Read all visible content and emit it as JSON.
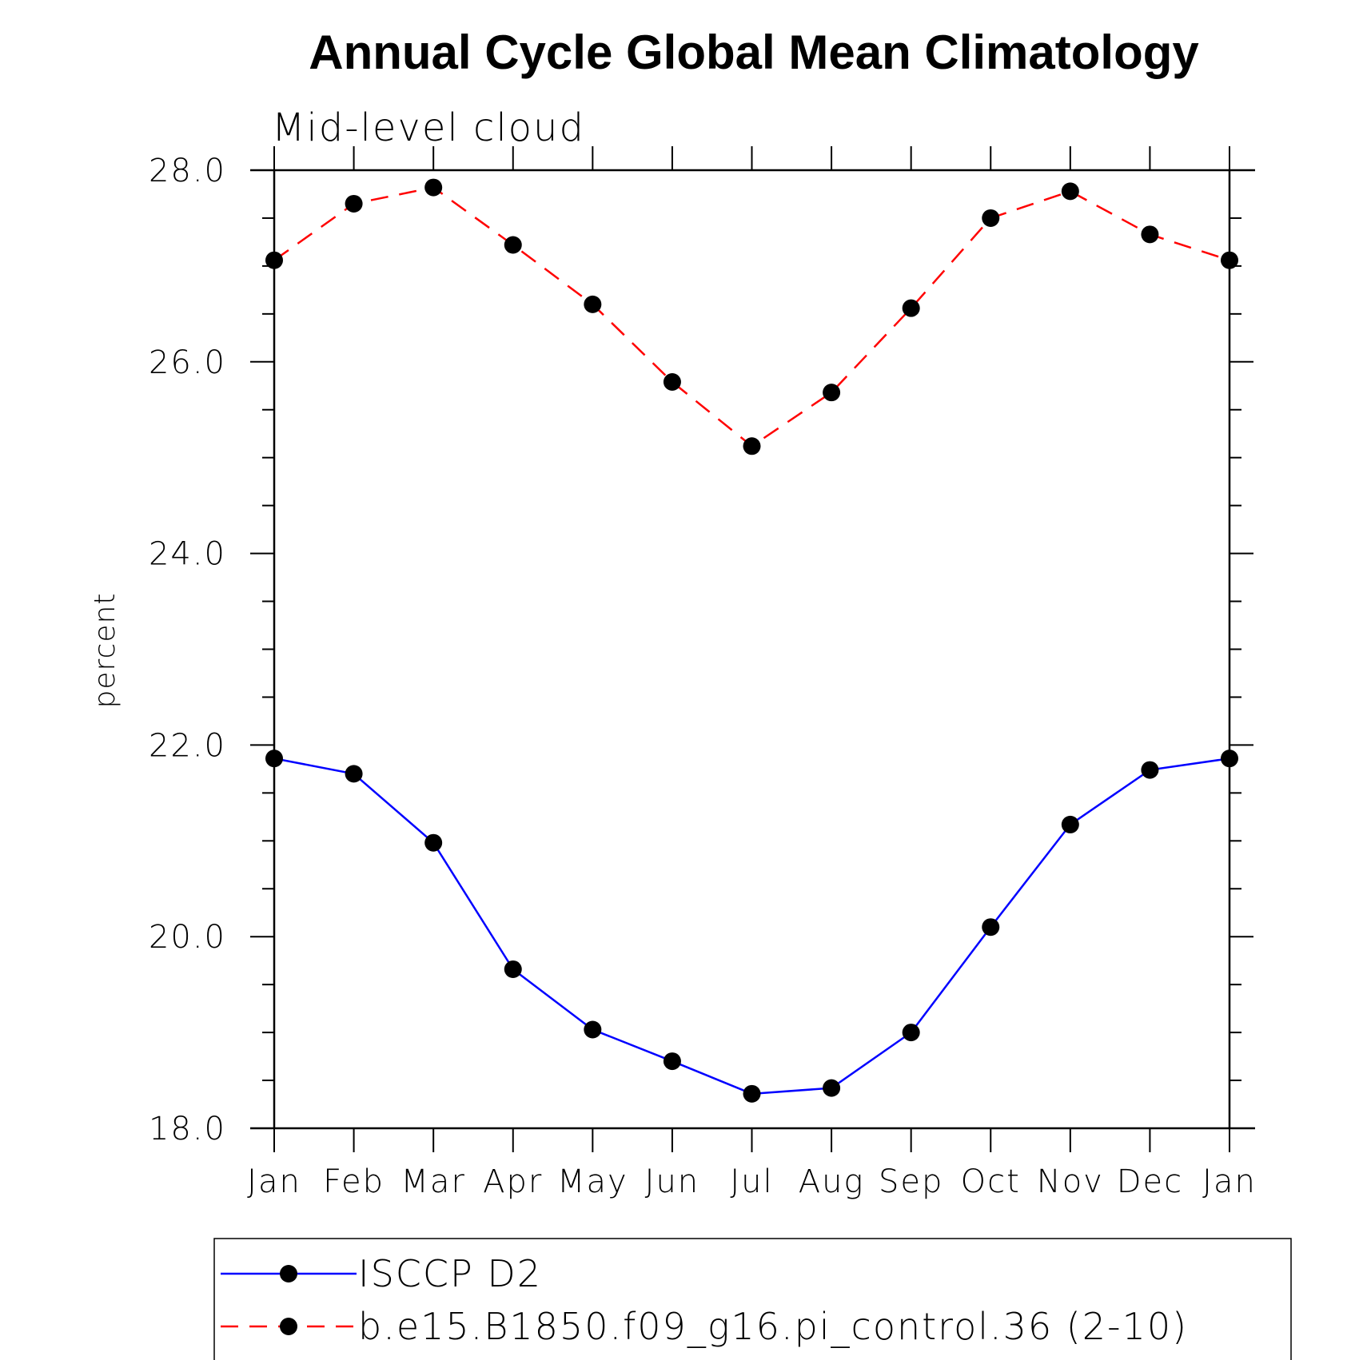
{
  "chart_data": {
    "type": "line",
    "title": "Annual Cycle Global Mean Climatology",
    "subtitle": "Mid-level cloud",
    "xlabel": "",
    "ylabel": "percent",
    "ylim": [
      18.0,
      28.0
    ],
    "y_ticks": [
      "18.0",
      "20.0",
      "22.0",
      "24.0",
      "26.0",
      "28.0"
    ],
    "categories": [
      "Jan",
      "Feb",
      "Mar",
      "Apr",
      "May",
      "Jun",
      "Jul",
      "Aug",
      "Sep",
      "Oct",
      "Nov",
      "Dec",
      "Jan"
    ],
    "series": [
      {
        "name": "ISCCP D2",
        "color": "#0000ff",
        "dash": "solid",
        "values": [
          21.86,
          21.7,
          20.98,
          19.66,
          19.03,
          18.7,
          18.36,
          18.42,
          19.0,
          20.1,
          21.17,
          21.74,
          21.86
        ]
      },
      {
        "name": "b.e15.B1850.f09_g16.pi_control.36 (2-10)",
        "color": "#ff0000",
        "dash": "dashed",
        "values": [
          27.06,
          27.65,
          27.82,
          27.22,
          26.6,
          25.79,
          25.12,
          25.68,
          26.56,
          27.5,
          27.78,
          27.33,
          27.06
        ]
      }
    ],
    "marker_color": "#000000",
    "legend_placement": "bottom"
  }
}
